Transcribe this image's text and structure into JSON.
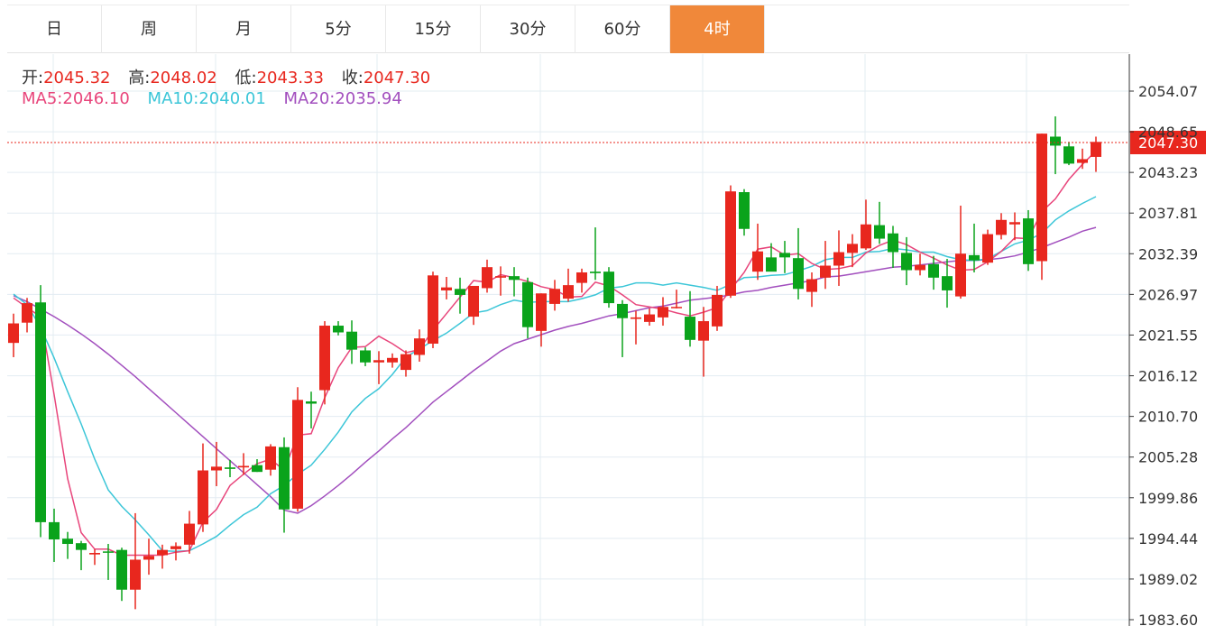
{
  "tabs": [
    "日",
    "周",
    "月",
    "5分",
    "15分",
    "30分",
    "60分",
    "4时"
  ],
  "active_tab": 7,
  "ohlc": {
    "open_label": "开:",
    "open": "2045.32",
    "high_label": "高:",
    "high": "2048.02",
    "low_label": "低:",
    "low": "2043.33",
    "close_label": "收:",
    "close": "2047.30"
  },
  "ma": {
    "ma5_label": "MA5:",
    "ma5": "2046.10",
    "ma10_label": "MA10:",
    "ma10": "2040.01",
    "ma20_label": "MA20:",
    "ma20": "2035.94"
  },
  "colors": {
    "up": "#e8271e",
    "down": "#0aa31b",
    "ma5": "#e8457b",
    "ma10": "#3cc6d8",
    "ma20": "#a24fbe",
    "active_tab": "#f0883a"
  },
  "chart_data": {
    "type": "candlestick",
    "ylim": [
      1983.6,
      2058.0
    ],
    "y_ticks": [
      "2054.07",
      "2048.65",
      "2043.23",
      "2037.81",
      "2032.39",
      "2026.97",
      "2021.55",
      "2016.12",
      "2010.70",
      "2005.28",
      "1999.86",
      "1994.44",
      "1989.02",
      "1983.60"
    ],
    "last_price": "2047.30",
    "candles": [
      [
        2020.5,
        2024.4,
        2018.6,
        2023.1
      ],
      [
        2023.2,
        2026.5,
        2021.9,
        2025.8
      ],
      [
        2025.9,
        2028.2,
        1994.6,
        1996.6
      ],
      [
        1996.6,
        1998.4,
        1991.3,
        1994.3
      ],
      [
        1994.4,
        1995.3,
        1991.7,
        1993.7
      ],
      [
        1993.8,
        1994.1,
        1990.2,
        1992.9
      ],
      [
        1992.3,
        1993.0,
        1990.9,
        1992.5
      ],
      [
        1992.7,
        1993.7,
        1988.9,
        1992.6
      ],
      [
        1992.9,
        1993.2,
        1986.1,
        1987.6
      ],
      [
        1987.6,
        1997.8,
        1985.0,
        1991.6
      ],
      [
        1991.6,
        1994.4,
        1989.6,
        1992.1
      ],
      [
        1992.2,
        1993.6,
        1990.4,
        1992.9
      ],
      [
        1993.0,
        1993.9,
        1991.5,
        1993.4
      ],
      [
        1993.6,
        1998.1,
        1992.4,
        1996.4
      ],
      [
        1996.3,
        2007.1,
        1995.3,
        2003.5
      ],
      [
        2003.5,
        2007.3,
        2001.4,
        2004.0
      ],
      [
        2003.9,
        2004.9,
        2002.6,
        2003.7
      ],
      [
        2003.9,
        2005.8,
        2002.9,
        2004.1
      ],
      [
        2004.2,
        2005.0,
        2003.3,
        2003.3
      ],
      [
        2003.6,
        2007.0,
        2002.8,
        2006.7
      ],
      [
        2006.6,
        2007.9,
        1995.2,
        1998.3
      ],
      [
        1998.4,
        2014.6,
        1998.0,
        2012.9
      ],
      [
        2012.7,
        2014.0,
        2009.1,
        2012.4
      ],
      [
        2014.2,
        2023.4,
        2012.3,
        2022.8
      ],
      [
        2022.8,
        2023.4,
        2021.5,
        2021.9
      ],
      [
        2022.0,
        2023.5,
        2017.7,
        2019.6
      ],
      [
        2019.5,
        2019.9,
        2017.4,
        2017.9
      ],
      [
        2017.9,
        2019.4,
        2015.0,
        2018.2
      ],
      [
        2017.9,
        2019.1,
        2017.2,
        2018.5
      ],
      [
        2016.9,
        2019.5,
        2016.0,
        2019.0
      ],
      [
        2018.9,
        2022.3,
        2018.0,
        2021.1
      ],
      [
        2020.4,
        2030.0,
        2019.8,
        2029.5
      ],
      [
        2027.5,
        2029.3,
        2026.3,
        2027.9
      ],
      [
        2027.7,
        2029.2,
        2024.4,
        2026.9
      ],
      [
        2024.0,
        2028.0,
        2022.9,
        2028.1
      ],
      [
        2027.8,
        2031.6,
        2027.2,
        2030.6
      ],
      [
        2029.2,
        2030.7,
        2026.8,
        2029.4
      ],
      [
        2029.4,
        2030.6,
        2026.7,
        2028.9
      ],
      [
        2028.6,
        2029.2,
        2021.1,
        2022.6
      ],
      [
        2022.1,
        2027.1,
        2020.0,
        2027.1
      ],
      [
        2025.7,
        2028.9,
        2024.8,
        2027.7
      ],
      [
        2026.4,
        2030.4,
        2026.0,
        2028.2
      ],
      [
        2028.5,
        2030.4,
        2027.2,
        2029.9
      ],
      [
        2030.0,
        2035.9,
        2028.9,
        2029.8
      ],
      [
        2030.0,
        2030.6,
        2025.2,
        2025.8
      ],
      [
        2025.7,
        2026.2,
        2018.6,
        2023.8
      ],
      [
        2023.7,
        2024.8,
        2020.3,
        2023.9
      ],
      [
        2023.3,
        2025.1,
        2022.8,
        2024.3
      ],
      [
        2023.9,
        2026.6,
        2022.8,
        2025.3
      ],
      [
        2025.2,
        2027.6,
        2025.1,
        2025.3
      ],
      [
        2024.0,
        2027.4,
        2020.0,
        2020.9
      ],
      [
        2020.8,
        2025.3,
        2016.0,
        2023.4
      ],
      [
        2022.7,
        2028.1,
        2022.1,
        2026.9
      ],
      [
        2026.8,
        2041.5,
        2026.5,
        2040.7
      ],
      [
        2040.6,
        2041.0,
        2034.8,
        2035.7
      ],
      [
        2030.0,
        2036.4,
        2028.9,
        2032.7
      ],
      [
        2031.9,
        2033.8,
        2030.1,
        2030.0
      ],
      [
        2032.5,
        2034.1,
        2029.8,
        2031.9
      ],
      [
        2031.8,
        2035.8,
        2026.3,
        2027.7
      ],
      [
        2027.3,
        2029.9,
        2025.3,
        2029.0
      ],
      [
        2029.2,
        2034.1,
        2027.7,
        2030.8
      ],
      [
        2030.8,
        2035.5,
        2028.1,
        2032.6
      ],
      [
        2032.5,
        2035.0,
        2030.6,
        2033.7
      ],
      [
        2033.1,
        2039.6,
        2032.9,
        2036.3
      ],
      [
        2036.2,
        2039.3,
        2033.7,
        2034.4
      ],
      [
        2035.1,
        2036.1,
        2030.5,
        2032.6
      ],
      [
        2032.5,
        2034.6,
        2028.2,
        2030.2
      ],
      [
        2030.2,
        2032.4,
        2029.5,
        2030.9
      ],
      [
        2031.0,
        2032.1,
        2027.6,
        2029.2
      ],
      [
        2029.4,
        2031.7,
        2025.2,
        2027.5
      ],
      [
        2026.7,
        2038.8,
        2026.4,
        2032.4
      ],
      [
        2032.2,
        2036.4,
        2029.9,
        2031.5
      ],
      [
        2031.2,
        2035.6,
        2030.9,
        2035.0
      ],
      [
        2034.9,
        2037.8,
        2034.3,
        2036.9
      ],
      [
        2036.3,
        2037.9,
        2034.2,
        2036.6
      ],
      [
        2037.1,
        2038.2,
        2030.1,
        2031.0
      ],
      [
        2031.4,
        2048.4,
        2028.9,
        2048.4
      ],
      [
        2048.0,
        2050.7,
        2043.0,
        2046.8
      ],
      [
        2046.7,
        2047.3,
        2044.2,
        2044.4
      ],
      [
        2044.5,
        2046.4,
        2043.7,
        2045.0
      ],
      [
        2045.3,
        2048.0,
        2043.3,
        2047.3
      ]
    ],
    "ma5": [
      2026.5,
      2025.2,
      2024.0,
      2013.6,
      2002.4,
      1995.2,
      1993.0,
      1993.0,
      1992.2,
      1992.2,
      1992.2,
      1992.2,
      1992.6,
      1992.8,
      1996.6,
      1998.3,
      2001.5,
      2003.0,
      2004.4,
      2005.0,
      2003.5,
      2008.2,
      2008.4,
      2013.2,
      2017.2,
      2019.9,
      2020.0,
      2021.4,
      2020.4,
      2019.2,
      2019.6,
      2022.2,
      2024.4,
      2026.6,
      2028.8,
      2028.6,
      2029.6,
      2029.2,
      2028.7,
      2028.0,
      2027.6,
      2026.6,
      2026.7,
      2028.6,
      2028.1,
      2026.9,
      2025.6,
      2025.3,
      2025.0,
      2024.5,
      2024.1,
      2024.6,
      2025.2,
      2027.6,
      2029.9,
      2033.0,
      2033.3,
      2032.2,
      2032.4,
      2031.1,
      2030.3,
      2030.4,
      2030.8,
      2032.5,
      2033.5,
      2034.2,
      2033.6,
      2032.6,
      2031.8,
      2030.9,
      2030.2,
      2030.3,
      2031.3,
      2032.7,
      2034.5,
      2034.4,
      2038.0,
      2039.7,
      2042.3,
      2044.3,
      2046.1
    ],
    "ma10": [
      2027.0,
      2025.6,
      2022.6,
      2018.5,
      2014.0,
      2009.7,
      2005.0,
      2000.9,
      1998.7,
      1996.9,
      1994.9,
      1992.8,
      1992.7,
      1992.8,
      1993.7,
      1994.7,
      1996.2,
      1997.6,
      1998.6,
      2000.4,
      2001.5,
      2003.0,
      2004.2,
      2006.3,
      2008.6,
      2011.3,
      2013.1,
      2014.4,
      2016.3,
      2018.6,
      2019.7,
      2020.8,
      2021.8,
      2023.1,
      2024.5,
      2024.8,
      2025.6,
      2026.2,
      2025.9,
      2026.0,
      2026.0,
      2026.0,
      2026.4,
      2026.9,
      2027.8,
      2028.0,
      2028.5,
      2028.5,
      2028.2,
      2028.5,
      2028.2,
      2027.9,
      2027.5,
      2028.3,
      2029.2,
      2029.3,
      2029.5,
      2029.6,
      2030.1,
      2030.7,
      2031.6,
      2031.9,
      2031.9,
      2032.6,
      2032.7,
      2033.1,
      2032.9,
      2032.6,
      2032.6,
      2032.0,
      2031.6,
      2031.5,
      2031.7,
      2032.7,
      2033.7,
      2034.2,
      2035.1,
      2036.9,
      2038.1,
      2039.1,
      2040.0
    ],
    "ma20": [
      2026.8,
      2026.0,
      2025.0,
      2024.0,
      2022.9,
      2021.7,
      2020.4,
      2019.0,
      2017.5,
      2016.0,
      2014.4,
      2012.8,
      2011.2,
      2009.6,
      2008.0,
      2006.4,
      2004.8,
      2003.2,
      2001.6,
      2000.0,
      1998.2,
      1997.8,
      1998.8,
      2000.1,
      2001.5,
      2003.0,
      2004.6,
      2006.1,
      2007.7,
      2009.2,
      2010.9,
      2012.6,
      2014.0,
      2015.4,
      2016.8,
      2018.1,
      2019.4,
      2020.4,
      2021.0,
      2021.6,
      2022.2,
      2022.7,
      2023.1,
      2023.6,
      2024.1,
      2024.4,
      2024.8,
      2025.2,
      2025.4,
      2025.8,
      2026.2,
      2026.4,
      2026.6,
      2026.9,
      2027.3,
      2027.5,
      2027.9,
      2028.2,
      2028.5,
      2028.8,
      2029.3,
      2029.4,
      2029.7,
      2030.0,
      2030.3,
      2030.6,
      2030.7,
      2030.9,
      2031.1,
      2031.3,
      2031.5,
      2031.5,
      2031.6,
      2031.8,
      2032.1,
      2032.6,
      2033.2,
      2033.9,
      2034.6,
      2035.4,
      2035.9
    ]
  }
}
